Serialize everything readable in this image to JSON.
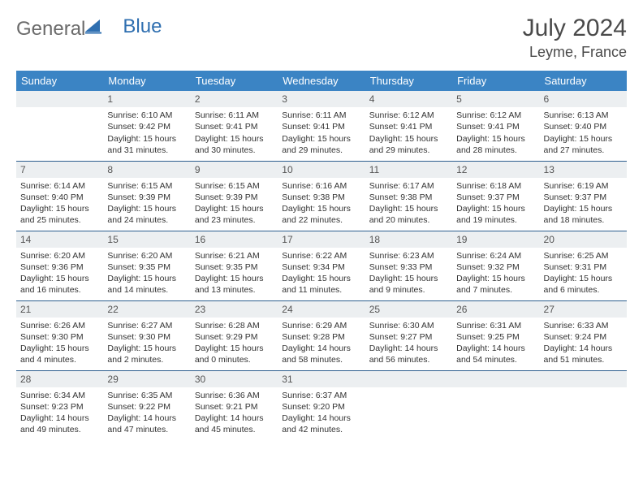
{
  "brand": {
    "part1": "General",
    "part2": "Blue"
  },
  "title": "July 2024",
  "location": "Leyme, France",
  "colors": {
    "header_bg": "#3b84c4",
    "header_text": "#ffffff",
    "daynum_bg": "#eceff1",
    "row_border": "#2d5f8f",
    "logo_gray": "#6a6a6a",
    "logo_blue": "#2f6fb0"
  },
  "day_names": [
    "Sunday",
    "Monday",
    "Tuesday",
    "Wednesday",
    "Thursday",
    "Friday",
    "Saturday"
  ],
  "weeks": [
    [
      {
        "num": "",
        "lines": []
      },
      {
        "num": "1",
        "lines": [
          "Sunrise: 6:10 AM",
          "Sunset: 9:42 PM",
          "Daylight: 15 hours and 31 minutes."
        ]
      },
      {
        "num": "2",
        "lines": [
          "Sunrise: 6:11 AM",
          "Sunset: 9:41 PM",
          "Daylight: 15 hours and 30 minutes."
        ]
      },
      {
        "num": "3",
        "lines": [
          "Sunrise: 6:11 AM",
          "Sunset: 9:41 PM",
          "Daylight: 15 hours and 29 minutes."
        ]
      },
      {
        "num": "4",
        "lines": [
          "Sunrise: 6:12 AM",
          "Sunset: 9:41 PM",
          "Daylight: 15 hours and 29 minutes."
        ]
      },
      {
        "num": "5",
        "lines": [
          "Sunrise: 6:12 AM",
          "Sunset: 9:41 PM",
          "Daylight: 15 hours and 28 minutes."
        ]
      },
      {
        "num": "6",
        "lines": [
          "Sunrise: 6:13 AM",
          "Sunset: 9:40 PM",
          "Daylight: 15 hours and 27 minutes."
        ]
      }
    ],
    [
      {
        "num": "7",
        "lines": [
          "Sunrise: 6:14 AM",
          "Sunset: 9:40 PM",
          "Daylight: 15 hours and 25 minutes."
        ]
      },
      {
        "num": "8",
        "lines": [
          "Sunrise: 6:15 AM",
          "Sunset: 9:39 PM",
          "Daylight: 15 hours and 24 minutes."
        ]
      },
      {
        "num": "9",
        "lines": [
          "Sunrise: 6:15 AM",
          "Sunset: 9:39 PM",
          "Daylight: 15 hours and 23 minutes."
        ]
      },
      {
        "num": "10",
        "lines": [
          "Sunrise: 6:16 AM",
          "Sunset: 9:38 PM",
          "Daylight: 15 hours and 22 minutes."
        ]
      },
      {
        "num": "11",
        "lines": [
          "Sunrise: 6:17 AM",
          "Sunset: 9:38 PM",
          "Daylight: 15 hours and 20 minutes."
        ]
      },
      {
        "num": "12",
        "lines": [
          "Sunrise: 6:18 AM",
          "Sunset: 9:37 PM",
          "Daylight: 15 hours and 19 minutes."
        ]
      },
      {
        "num": "13",
        "lines": [
          "Sunrise: 6:19 AM",
          "Sunset: 9:37 PM",
          "Daylight: 15 hours and 18 minutes."
        ]
      }
    ],
    [
      {
        "num": "14",
        "lines": [
          "Sunrise: 6:20 AM",
          "Sunset: 9:36 PM",
          "Daylight: 15 hours and 16 minutes."
        ]
      },
      {
        "num": "15",
        "lines": [
          "Sunrise: 6:20 AM",
          "Sunset: 9:35 PM",
          "Daylight: 15 hours and 14 minutes."
        ]
      },
      {
        "num": "16",
        "lines": [
          "Sunrise: 6:21 AM",
          "Sunset: 9:35 PM",
          "Daylight: 15 hours and 13 minutes."
        ]
      },
      {
        "num": "17",
        "lines": [
          "Sunrise: 6:22 AM",
          "Sunset: 9:34 PM",
          "Daylight: 15 hours and 11 minutes."
        ]
      },
      {
        "num": "18",
        "lines": [
          "Sunrise: 6:23 AM",
          "Sunset: 9:33 PM",
          "Daylight: 15 hours and 9 minutes."
        ]
      },
      {
        "num": "19",
        "lines": [
          "Sunrise: 6:24 AM",
          "Sunset: 9:32 PM",
          "Daylight: 15 hours and 7 minutes."
        ]
      },
      {
        "num": "20",
        "lines": [
          "Sunrise: 6:25 AM",
          "Sunset: 9:31 PM",
          "Daylight: 15 hours and 6 minutes."
        ]
      }
    ],
    [
      {
        "num": "21",
        "lines": [
          "Sunrise: 6:26 AM",
          "Sunset: 9:30 PM",
          "Daylight: 15 hours and 4 minutes."
        ]
      },
      {
        "num": "22",
        "lines": [
          "Sunrise: 6:27 AM",
          "Sunset: 9:30 PM",
          "Daylight: 15 hours and 2 minutes."
        ]
      },
      {
        "num": "23",
        "lines": [
          "Sunrise: 6:28 AM",
          "Sunset: 9:29 PM",
          "Daylight: 15 hours and 0 minutes."
        ]
      },
      {
        "num": "24",
        "lines": [
          "Sunrise: 6:29 AM",
          "Sunset: 9:28 PM",
          "Daylight: 14 hours and 58 minutes."
        ]
      },
      {
        "num": "25",
        "lines": [
          "Sunrise: 6:30 AM",
          "Sunset: 9:27 PM",
          "Daylight: 14 hours and 56 minutes."
        ]
      },
      {
        "num": "26",
        "lines": [
          "Sunrise: 6:31 AM",
          "Sunset: 9:25 PM",
          "Daylight: 14 hours and 54 minutes."
        ]
      },
      {
        "num": "27",
        "lines": [
          "Sunrise: 6:33 AM",
          "Sunset: 9:24 PM",
          "Daylight: 14 hours and 51 minutes."
        ]
      }
    ],
    [
      {
        "num": "28",
        "lines": [
          "Sunrise: 6:34 AM",
          "Sunset: 9:23 PM",
          "Daylight: 14 hours and 49 minutes."
        ]
      },
      {
        "num": "29",
        "lines": [
          "Sunrise: 6:35 AM",
          "Sunset: 9:22 PM",
          "Daylight: 14 hours and 47 minutes."
        ]
      },
      {
        "num": "30",
        "lines": [
          "Sunrise: 6:36 AM",
          "Sunset: 9:21 PM",
          "Daylight: 14 hours and 45 minutes."
        ]
      },
      {
        "num": "31",
        "lines": [
          "Sunrise: 6:37 AM",
          "Sunset: 9:20 PM",
          "Daylight: 14 hours and 42 minutes."
        ]
      },
      {
        "num": "",
        "lines": []
      },
      {
        "num": "",
        "lines": []
      },
      {
        "num": "",
        "lines": []
      }
    ]
  ]
}
